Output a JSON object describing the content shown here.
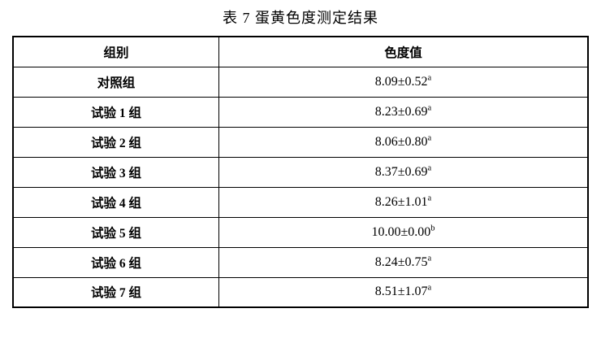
{
  "title": "表 7 蛋黄色度测定结果",
  "table": {
    "headers": [
      "组别",
      "色度值"
    ],
    "rows": [
      {
        "group": "对照组",
        "value": "8.09±0.52",
        "sup": "a"
      },
      {
        "group": "试验 1 组",
        "value": "8.23±0.69",
        "sup": "a"
      },
      {
        "group": "试验 2 组",
        "value": "8.06±0.80",
        "sup": "a"
      },
      {
        "group": "试验 3 组",
        "value": "8.37±0.69",
        "sup": "a"
      },
      {
        "group": "试验 4 组",
        "value": "8.26±1.01",
        "sup": "a"
      },
      {
        "group": "试验 5 组",
        "value": "10.00±0.00",
        "sup": "b"
      },
      {
        "group": "试验 6 组",
        "value": "8.24±0.75",
        "sup": "a"
      },
      {
        "group": "试验 7 组",
        "value": "8.51±1.07",
        "sup": "a"
      }
    ]
  }
}
